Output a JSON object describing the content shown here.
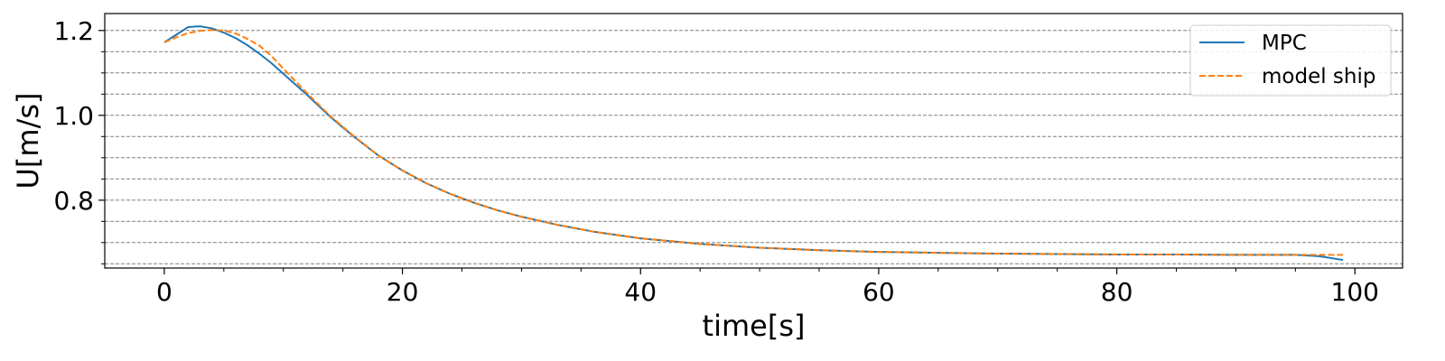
{
  "chart_data": {
    "type": "line",
    "xlabel": "time[s]",
    "ylabel": "U[m/s]",
    "xlim": [
      -5,
      104
    ],
    "ylim": [
      0.64,
      1.24
    ],
    "xticks": [
      0,
      20,
      40,
      60,
      80,
      100
    ],
    "xtick_labels": [
      "0",
      "20",
      "40",
      "60",
      "80",
      "100"
    ],
    "xminor_step": 5,
    "yticks": [
      0.8,
      1.0,
      1.2
    ],
    "ytick_labels": [
      "0.8",
      "1.0",
      "1.2"
    ],
    "grid_y": [
      0.65,
      0.7,
      0.75,
      0.8,
      0.85,
      0.9,
      0.95,
      1.0,
      1.05,
      1.1,
      1.15,
      1.2
    ],
    "legend_position": "top-right",
    "series": [
      {
        "name": "MPC",
        "color": "#1f77b4",
        "dash": "solid",
        "points": [
          [
            0,
            1.172
          ],
          [
            1,
            1.19
          ],
          [
            2,
            1.208
          ],
          [
            3,
            1.21
          ],
          [
            4,
            1.205
          ],
          [
            5,
            1.195
          ],
          [
            6,
            1.182
          ],
          [
            7,
            1.165
          ],
          [
            8,
            1.145
          ],
          [
            9,
            1.123
          ],
          [
            10,
            1.098
          ],
          [
            12,
            1.048
          ],
          [
            14,
            0.995
          ],
          [
            16,
            0.948
          ],
          [
            18,
            0.905
          ],
          [
            20,
            0.87
          ],
          [
            22,
            0.84
          ],
          [
            24,
            0.815
          ],
          [
            26,
            0.794
          ],
          [
            28,
            0.776
          ],
          [
            30,
            0.761
          ],
          [
            33,
            0.742
          ],
          [
            36,
            0.726
          ],
          [
            40,
            0.71
          ],
          [
            45,
            0.697
          ],
          [
            50,
            0.688
          ],
          [
            55,
            0.682
          ],
          [
            60,
            0.678
          ],
          [
            65,
            0.676
          ],
          [
            70,
            0.674
          ],
          [
            75,
            0.673
          ],
          [
            80,
            0.672
          ],
          [
            85,
            0.672
          ],
          [
            90,
            0.671
          ],
          [
            95,
            0.671
          ],
          [
            97,
            0.668
          ],
          [
            99,
            0.659
          ]
        ]
      },
      {
        "name": "model ship",
        "color": "#ff7f0e",
        "dash": "dashed",
        "points": [
          [
            0,
            1.172
          ],
          [
            1,
            1.184
          ],
          [
            2,
            1.194
          ],
          [
            3,
            1.199
          ],
          [
            4,
            1.201
          ],
          [
            5,
            1.2
          ],
          [
            6,
            1.193
          ],
          [
            7,
            1.18
          ],
          [
            8,
            1.164
          ],
          [
            9,
            1.14
          ],
          [
            10,
            1.11
          ],
          [
            12,
            1.052
          ],
          [
            14,
            0.997
          ],
          [
            16,
            0.949
          ],
          [
            18,
            0.905
          ],
          [
            20,
            0.87
          ],
          [
            22,
            0.84
          ],
          [
            24,
            0.815
          ],
          [
            26,
            0.794
          ],
          [
            28,
            0.776
          ],
          [
            30,
            0.761
          ],
          [
            33,
            0.742
          ],
          [
            36,
            0.726
          ],
          [
            40,
            0.71
          ],
          [
            45,
            0.697
          ],
          [
            50,
            0.688
          ],
          [
            55,
            0.682
          ],
          [
            60,
            0.678
          ],
          [
            65,
            0.676
          ],
          [
            70,
            0.674
          ],
          [
            75,
            0.673
          ],
          [
            80,
            0.672
          ],
          [
            85,
            0.672
          ],
          [
            90,
            0.671
          ],
          [
            95,
            0.671
          ],
          [
            97,
            0.671
          ],
          [
            99,
            0.671
          ]
        ]
      }
    ]
  }
}
